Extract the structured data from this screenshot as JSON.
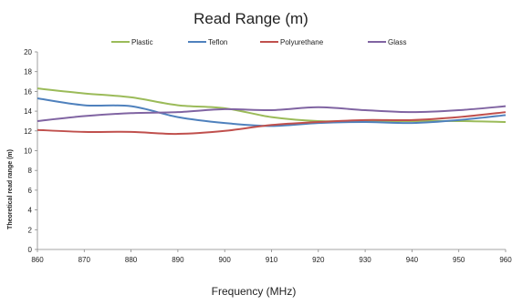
{
  "chart_data": {
    "type": "line",
    "title": "Read Range (m)",
    "xlabel": "Frequency (MHz)",
    "ylabel": "Theoretical read range (m)",
    "xlim": [
      860,
      960
    ],
    "ylim": [
      0,
      20
    ],
    "x_ticks": [
      860,
      870,
      880,
      890,
      900,
      910,
      920,
      930,
      940,
      950,
      960
    ],
    "y_ticks": [
      0,
      2,
      4,
      6,
      8,
      10,
      12,
      14,
      16,
      18,
      20
    ],
    "grid": false,
    "legend_position": "top",
    "x": [
      860,
      870,
      880,
      890,
      900,
      910,
      920,
      930,
      940,
      950,
      960
    ],
    "series": [
      {
        "name": "Plastic",
        "color": "#9bbb59",
        "values": [
          16.3,
          15.8,
          15.4,
          14.6,
          14.3,
          13.4,
          13.0,
          13.0,
          13.0,
          13.0,
          12.9
        ]
      },
      {
        "name": "Teflon",
        "color": "#4f81bd",
        "values": [
          15.3,
          14.6,
          14.5,
          13.4,
          12.8,
          12.5,
          12.8,
          12.9,
          12.8,
          13.1,
          13.6
        ]
      },
      {
        "name": "Polyurethane",
        "color": "#c0504d",
        "values": [
          12.1,
          11.9,
          11.9,
          11.7,
          12.0,
          12.6,
          12.9,
          13.1,
          13.1,
          13.4,
          13.9
        ]
      },
      {
        "name": "Glass",
        "color": "#8064a2",
        "values": [
          13.0,
          13.5,
          13.8,
          13.9,
          14.2,
          14.1,
          14.4,
          14.1,
          13.9,
          14.1,
          14.5
        ]
      }
    ]
  }
}
